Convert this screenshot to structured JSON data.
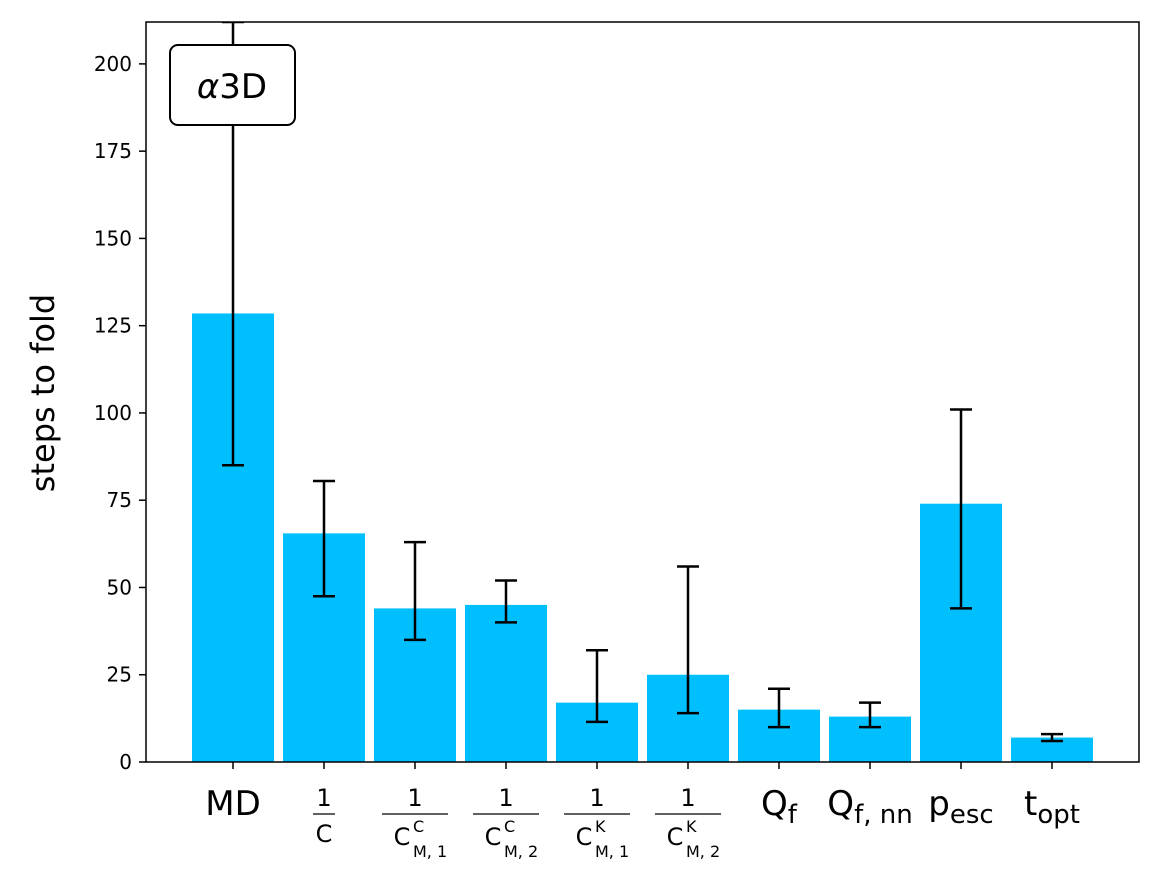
{
  "chart_data": {
    "type": "bar",
    "title": "",
    "xlabel": "",
    "ylabel": "steps to fold",
    "ylim": [
      0,
      212
    ],
    "yticks": [
      0,
      25,
      50,
      75,
      100,
      125,
      150,
      175,
      200
    ],
    "grid": false,
    "legend": "none",
    "annotation": {
      "text_italic": "α",
      "text_plain": "3D",
      "placement": "top-left"
    },
    "bar_color": "#00BFFF",
    "error_color": "#000000",
    "categories": [
      {
        "kind": "text",
        "base": "MD",
        "sub": ""
      },
      {
        "kind": "frac",
        "num": "1",
        "base": "C",
        "sup": "",
        "sub": ""
      },
      {
        "kind": "frac",
        "num": "1",
        "base": "C",
        "sup": "C",
        "sub": "M, 1"
      },
      {
        "kind": "frac",
        "num": "1",
        "base": "C",
        "sup": "C",
        "sub": "M, 2"
      },
      {
        "kind": "frac",
        "num": "1",
        "base": "C",
        "sup": "K",
        "sub": "M, 1"
      },
      {
        "kind": "frac",
        "num": "1",
        "base": "C",
        "sup": "K",
        "sub": "M, 2"
      },
      {
        "kind": "text",
        "base": "Q",
        "sub": "f"
      },
      {
        "kind": "text",
        "base": "Q",
        "sub": "f, nn"
      },
      {
        "kind": "text",
        "base": "p",
        "sub": "esc"
      },
      {
        "kind": "text",
        "base": "t",
        "sub": "opt"
      }
    ],
    "values": [
      128.5,
      65.5,
      44,
      45,
      17,
      25,
      15,
      13,
      74,
      7
    ],
    "err_low": [
      85,
      47.5,
      35,
      40,
      11.5,
      14,
      10,
      10,
      44,
      6
    ],
    "err_high": [
      212,
      80.5,
      63,
      52,
      32,
      56,
      21,
      17,
      101,
      8
    ]
  }
}
